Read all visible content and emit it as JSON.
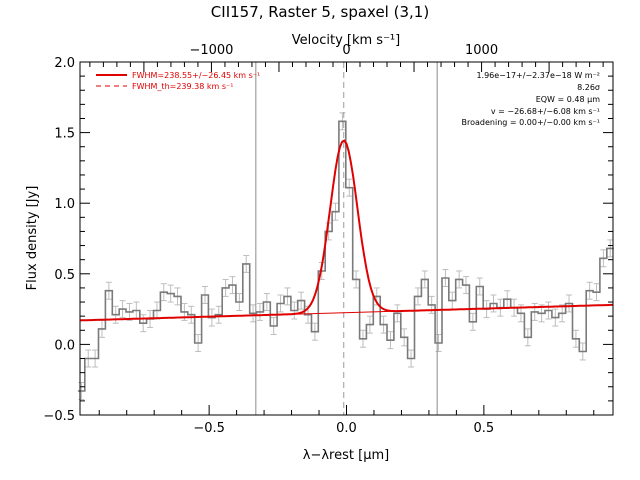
{
  "chart_data": {
    "type": "line",
    "title": "CII157, Raster 5, spaxel (3,1)",
    "xlabel": "λ−λrest [μm]",
    "ylabel": "Flux density [Jy]",
    "top_xlabel": "Velocity [km s⁻¹]",
    "xlim": [
      -0.97,
      0.97
    ],
    "ylim": [
      -0.5,
      2.0
    ],
    "x_ticks": [
      -0.5,
      0.0,
      0.5
    ],
    "x_tick_labels": [
      "−0.5",
      "0.0",
      "0.5"
    ],
    "y_ticks": [
      -0.5,
      0.0,
      0.5,
      1.0,
      1.5,
      2.0
    ],
    "y_tick_labels": [
      "−0.5",
      "0.0",
      "0.5",
      "1.0",
      "1.5",
      "2.0"
    ],
    "top_ticks": [
      -1000,
      0,
      1000
    ],
    "top_tick_labels": [
      "−1000",
      "0",
      "1000"
    ],
    "velocity_scale_um_per_1000kms": 0.4916,
    "vertical_lines": [
      -0.33,
      0.33
    ],
    "center_dashed_line": -0.01,
    "legend": [
      {
        "label": "FWHM=238.55+/−26.45 km s⁻¹",
        "style": "solid",
        "color": "#e00000"
      },
      {
        "label": "FWHM_th=239.38 km s⁻¹",
        "style": "dashed",
        "color": "#e00000"
      }
    ],
    "annotations": [
      "1.96e−17+/−2.37e−18 W m⁻²",
      "8.26σ",
      "EQW = 0.48 μm",
      "v = −26.68+/−6.08 km s⁻¹",
      "Broadening = 0.00+/−0.00 km s⁻¹"
    ],
    "colors": {
      "spectrum": "#7a7a7a",
      "error_bars": "#bdbdbd",
      "fit": "#e00000",
      "vlines": "#8c8c8c"
    },
    "fit": {
      "continuum_at_left": 0.17,
      "continuum_at_right": 0.28,
      "peak_height": 1.22,
      "center": -0.01,
      "fwhm": 0.117
    },
    "spectrum": {
      "x": [
        -0.965,
        -0.94,
        -0.915,
        -0.89,
        -0.865,
        -0.84,
        -0.815,
        -0.79,
        -0.765,
        -0.74,
        -0.715,
        -0.69,
        -0.665,
        -0.64,
        -0.615,
        -0.59,
        -0.565,
        -0.54,
        -0.515,
        -0.49,
        -0.465,
        -0.44,
        -0.415,
        -0.39,
        -0.365,
        -0.34,
        -0.315,
        -0.29,
        -0.265,
        -0.24,
        -0.215,
        -0.19,
        -0.165,
        -0.14,
        -0.115,
        -0.09,
        -0.065,
        -0.04,
        -0.015,
        0.01,
        0.035,
        0.06,
        0.085,
        0.11,
        0.135,
        0.16,
        0.185,
        0.21,
        0.235,
        0.26,
        0.285,
        0.31,
        0.335,
        0.36,
        0.385,
        0.41,
        0.435,
        0.46,
        0.485,
        0.51,
        0.535,
        0.56,
        0.585,
        0.61,
        0.635,
        0.66,
        0.685,
        0.71,
        0.735,
        0.76,
        0.785,
        0.81,
        0.835,
        0.86,
        0.885,
        0.91,
        0.935,
        0.96
      ],
      "y": [
        -0.33,
        -0.1,
        -0.1,
        0.11,
        0.38,
        0.21,
        0.25,
        0.23,
        0.24,
        0.15,
        0.18,
        0.24,
        0.37,
        0.36,
        0.34,
        0.23,
        0.21,
        0.01,
        0.35,
        0.19,
        0.21,
        0.4,
        0.42,
        0.3,
        0.57,
        0.22,
        0.23,
        0.3,
        0.13,
        0.29,
        0.34,
        0.24,
        0.31,
        0.21,
        0.09,
        0.52,
        0.8,
        0.94,
        1.58,
        1.11,
        0.46,
        0.04,
        0.14,
        0.34,
        0.14,
        0.03,
        0.22,
        0.05,
        -0.1,
        0.34,
        0.46,
        0.28,
        0.01,
        0.47,
        0.31,
        0.46,
        0.42,
        0.16,
        0.41,
        0.25,
        0.29,
        0.26,
        0.32,
        0.26,
        0.22,
        0.05,
        0.23,
        0.22,
        0.24,
        0.19,
        0.22,
        0.29,
        0.04,
        -0.05,
        0.38,
        0.37,
        0.61,
        0.68
      ],
      "yerr": 0.06
    }
  }
}
